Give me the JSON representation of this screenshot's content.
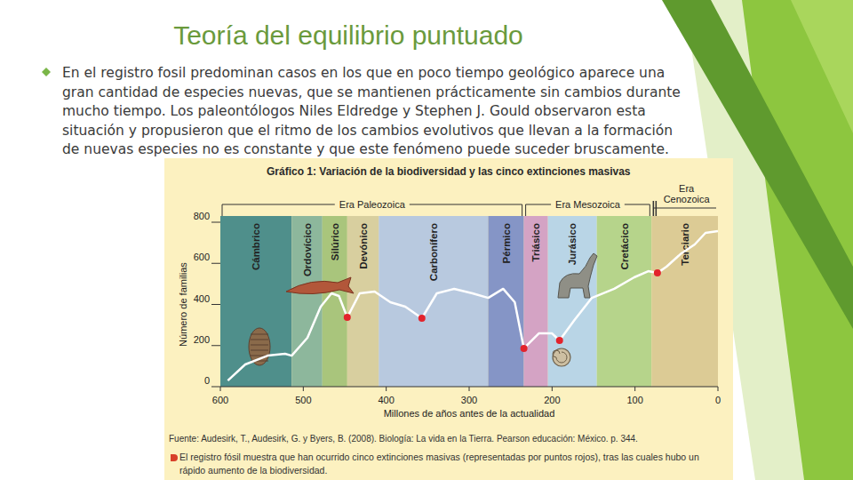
{
  "slide": {
    "title": "Teoría del equilibrio puntuado",
    "text": "En el registro fosil predominan casos en los que en poco tiempo geológico aparece una gran cantidad de especies nuevas, que se mantienen prácticamente sin cambios durante mucho tiempo. Los paleontólogos Niles Eldredge y Stephen J. Gould observaron esta situación y propusieron que el ritmo de los cambios evolutivos que llevan a la formación de nuevas especies no es constante y que este fenómeno puede suceder bruscamente."
  },
  "chart_data": {
    "type": "line",
    "title": "Gráfico 1: Variación de la biodiversidad y las cinco extinciones masivas",
    "x_label": "Millones de años antes de la actualidad",
    "y_label": "Número de familias",
    "xlim": [
      600,
      0
    ],
    "xticks": [
      600,
      500,
      400,
      300,
      200,
      100,
      0
    ],
    "ylim": [
      0,
      800
    ],
    "yticks": [
      0,
      200,
      400,
      600,
      800
    ],
    "grid": false,
    "series": [
      {
        "type": "line",
        "color": "#ffffff",
        "x": [
          591,
          570,
          543,
          522,
          514,
          495,
          479,
          466,
          457,
          447,
          432,
          414,
          395,
          377,
          357,
          339,
          318,
          296,
          277,
          259,
          245,
          234,
          216,
          200,
          191,
          173,
          152,
          125,
          101,
          84,
          73,
          62,
          44,
          28,
          15,
          0
        ],
        "values": [
          30,
          108,
          151,
          160,
          151,
          238,
          389,
          454,
          441,
          337,
          454,
          463,
          411,
          389,
          333,
          454,
          476,
          454,
          432,
          476,
          411,
          186,
          259,
          259,
          225,
          324,
          432,
          476,
          532,
          562,
          553,
          584,
          649,
          692,
          748,
          757
        ]
      },
      {
        "type": "scatter",
        "color": "#e3232c",
        "marker": "circle",
        "x": [
          447,
          357,
          234,
          191,
          73
        ],
        "values": [
          337,
          333,
          186,
          225,
          553
        ]
      }
    ],
    "periods": [
      {
        "name": "Cámbrico",
        "start": 600,
        "end": 514,
        "color": "#4f8f8b"
      },
      {
        "name": "Ordovícico",
        "start": 514,
        "end": 477,
        "color": "#8db79c"
      },
      {
        "name": "Silúrico",
        "start": 477,
        "end": 447,
        "color": "#a9c57c"
      },
      {
        "name": "Devónico",
        "start": 447,
        "end": 409,
        "color": "#d8cf9f"
      },
      {
        "name": "Carbonífero",
        "start": 409,
        "end": 277,
        "color": "#b8c9df"
      },
      {
        "name": "Pérmico",
        "start": 277,
        "end": 234,
        "color": "#8595c6"
      },
      {
        "name": "Triásico",
        "start": 234,
        "end": 205,
        "color": "#d4a3c4"
      },
      {
        "name": "Jurásico",
        "start": 205,
        "end": 146,
        "color": "#b9d5e6"
      },
      {
        "name": "Cretácico",
        "start": 146,
        "end": 80,
        "color": "#b6d48b"
      },
      {
        "name": "Terciario",
        "start": 80,
        "end": 0,
        "color": "#dccb95"
      }
    ],
    "eras": [
      {
        "name": "Era Paleozoica",
        "start": 600,
        "end": 234
      },
      {
        "name": "Era Mesozoica",
        "start": 234,
        "end": 80
      },
      {
        "name": "Era Cenozoica",
        "start": 80,
        "end": 0
      }
    ],
    "source": "Fuente: Audesirk, T., Audesirk, G. y Byers, B. (2008). Biología: La vida en la Tierra. Pearson educación: México. p. 344.",
    "note": "El registro fósil muestra que han ocurrido cinco extinciones masivas (representadas por puntos rojos), tras las cuales hubo un rápido aumento de la biodiversidad."
  }
}
